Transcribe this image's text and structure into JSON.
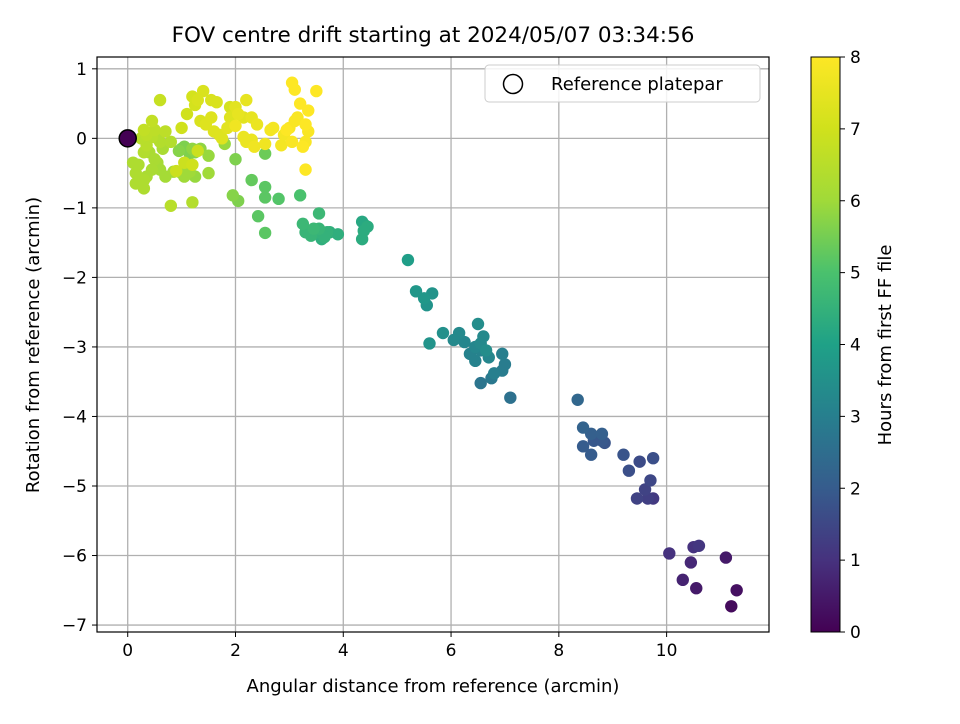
{
  "chart_data": {
    "type": "scatter",
    "title": "FOV centre drift starting at 2024/05/07 03:34:56",
    "xlabel": "Angular distance from reference (arcmin)",
    "ylabel": "Rotation from reference (arcmin)",
    "xlim": [
      -0.57,
      11.9
    ],
    "ylim": [
      -7.1,
      1.17
    ],
    "xticks": [
      0,
      2,
      4,
      6,
      8,
      10
    ],
    "xtick_labels": [
      "0",
      "2",
      "4",
      "6",
      "8",
      "10"
    ],
    "yticks": [
      1,
      0,
      -1,
      -2,
      -3,
      -4,
      -5,
      -6,
      -7
    ],
    "ytick_labels": [
      "1",
      "0",
      "−1",
      "−2",
      "−3",
      "−4",
      "−5",
      "−6",
      "−7"
    ],
    "grid": true,
    "legend": {
      "position": "upper right",
      "entries": [
        {
          "label": "Reference platepar",
          "marker": "open-circle"
        }
      ]
    },
    "reference_point": {
      "x": 0,
      "y": 0,
      "color_value": 0
    },
    "colorbar": {
      "label": "Hours from first FF file",
      "colormap": "viridis",
      "range": [
        0,
        8
      ],
      "ticks": [
        0,
        1,
        2,
        3,
        4,
        5,
        6,
        7,
        8
      ],
      "tick_labels": [
        "0",
        "1",
        "2",
        "3",
        "4",
        "5",
        "6",
        "7",
        "8"
      ]
    },
    "points": [
      [
        11.2,
        -6.73,
        0.2
      ],
      [
        11.3,
        -6.5,
        0.3
      ],
      [
        11.1,
        -6.03,
        0.5
      ],
      [
        10.55,
        -6.47,
        0.5
      ],
      [
        10.3,
        -6.35,
        0.7
      ],
      [
        10.45,
        -6.1,
        0.8
      ],
      [
        10.05,
        -5.97,
        1.0
      ],
      [
        10.5,
        -5.88,
        1.0
      ],
      [
        10.6,
        -5.86,
        1.1
      ],
      [
        9.75,
        -5.18,
        1.2
      ],
      [
        9.65,
        -5.18,
        1.3
      ],
      [
        9.45,
        -5.18,
        1.4
      ],
      [
        9.6,
        -5.05,
        1.4
      ],
      [
        9.7,
        -4.92,
        1.5
      ],
      [
        9.5,
        -4.65,
        1.6
      ],
      [
        9.75,
        -4.6,
        1.7
      ],
      [
        9.3,
        -4.78,
        1.7
      ],
      [
        9.2,
        -4.55,
        1.8
      ],
      [
        8.85,
        -4.38,
        1.8
      ],
      [
        8.8,
        -4.35,
        1.9
      ],
      [
        8.65,
        -4.35,
        1.9
      ],
      [
        8.6,
        -4.55,
        2.0
      ],
      [
        8.45,
        -4.43,
        2.0
      ],
      [
        8.6,
        -4.25,
        2.1
      ],
      [
        8.8,
        -4.25,
        2.1
      ],
      [
        8.45,
        -4.16,
        2.2
      ],
      [
        8.35,
        -3.76,
        2.3
      ],
      [
        7.1,
        -3.73,
        2.6
      ],
      [
        6.55,
        -3.52,
        2.7
      ],
      [
        6.75,
        -3.45,
        2.8
      ],
      [
        6.95,
        -3.34,
        2.9
      ],
      [
        7.0,
        -3.25,
        2.9
      ],
      [
        6.8,
        -3.38,
        3.0
      ],
      [
        6.95,
        -3.1,
        3.0
      ],
      [
        6.45,
        -3.2,
        3.1
      ],
      [
        6.35,
        -3.1,
        3.1
      ],
      [
        6.55,
        -3.05,
        3.1
      ],
      [
        6.7,
        -3.15,
        3.2
      ],
      [
        6.45,
        -3.0,
        3.2
      ],
      [
        6.25,
        -2.93,
        3.2
      ],
      [
        6.15,
        -2.8,
        3.3
      ],
      [
        6.05,
        -2.9,
        3.3
      ],
      [
        6.55,
        -2.95,
        3.3
      ],
      [
        6.6,
        -2.85,
        3.3
      ],
      [
        6.65,
        -3.05,
        3.4
      ],
      [
        6.5,
        -2.67,
        3.4
      ],
      [
        5.85,
        -2.8,
        3.5
      ],
      [
        5.6,
        -2.95,
        3.6
      ],
      [
        5.55,
        -2.4,
        3.6
      ],
      [
        5.65,
        -2.23,
        3.6
      ],
      [
        5.5,
        -2.3,
        3.7
      ],
      [
        5.35,
        -2.2,
        3.7
      ],
      [
        5.2,
        -1.75,
        3.9
      ],
      [
        4.4,
        -1.25,
        4.2
      ],
      [
        4.35,
        -1.2,
        4.2
      ],
      [
        4.45,
        -1.27,
        4.3
      ],
      [
        4.35,
        -1.45,
        4.3
      ],
      [
        4.38,
        -1.33,
        4.3
      ],
      [
        3.9,
        -1.38,
        4.4
      ],
      [
        3.75,
        -1.35,
        4.4
      ],
      [
        3.6,
        -1.45,
        4.4
      ],
      [
        3.5,
        -1.35,
        4.5
      ],
      [
        3.7,
        -1.35,
        4.5
      ],
      [
        3.65,
        -1.42,
        4.5
      ],
      [
        3.55,
        -1.3,
        4.6
      ],
      [
        3.4,
        -1.4,
        4.6
      ],
      [
        3.3,
        -1.35,
        4.6
      ],
      [
        3.45,
        -1.3,
        4.7
      ],
      [
        3.25,
        -1.23,
        4.7
      ],
      [
        3.55,
        -1.08,
        4.7
      ],
      [
        3.2,
        -0.82,
        5.0
      ],
      [
        2.8,
        -0.87,
        5.1
      ],
      [
        2.55,
        -0.85,
        5.2
      ],
      [
        2.55,
        -0.7,
        5.2
      ],
      [
        2.55,
        -1.36,
        5.2
      ],
      [
        2.42,
        -1.12,
        5.2
      ],
      [
        2.3,
        -0.6,
        5.3
      ],
      [
        2.55,
        -0.22,
        5.4
      ],
      [
        2.0,
        -0.3,
        5.6
      ],
      [
        2.05,
        -0.9,
        5.6
      ],
      [
        1.95,
        -0.82,
        5.7
      ],
      [
        1.0,
        -0.15,
        5.5
      ],
      [
        1.15,
        -0.22,
        5.6
      ],
      [
        1.05,
        -0.12,
        5.6
      ],
      [
        0.95,
        -0.18,
        5.7
      ],
      [
        1.25,
        -0.2,
        5.7
      ],
      [
        1.2,
        -0.15,
        5.8
      ],
      [
        1.35,
        -0.15,
        5.8
      ],
      [
        1.5,
        -0.25,
        5.9
      ],
      [
        1.8,
        -0.08,
        5.9
      ],
      [
        1.25,
        -0.55,
        5.9
      ],
      [
        1.05,
        -0.55,
        6.0
      ],
      [
        1.0,
        -0.5,
        6.0
      ],
      [
        1.15,
        -0.48,
        6.0
      ],
      [
        1.5,
        -0.5,
        6.0
      ],
      [
        0.85,
        -0.48,
        6.1
      ],
      [
        0.6,
        -0.45,
        6.1
      ],
      [
        0.7,
        -0.55,
        6.1
      ],
      [
        0.55,
        -0.35,
        6.1
      ],
      [
        0.5,
        -0.3,
        6.2
      ],
      [
        0.65,
        -0.15,
        6.2
      ],
      [
        0.4,
        -0.2,
        6.2
      ],
      [
        0.45,
        -0.45,
        6.2
      ],
      [
        0.35,
        -0.55,
        6.2
      ],
      [
        0.3,
        -0.6,
        6.3
      ],
      [
        0.15,
        -0.5,
        6.3
      ],
      [
        0.2,
        -0.38,
        6.3
      ],
      [
        0.1,
        -0.35,
        6.3
      ],
      [
        0.15,
        -0.65,
        6.3
      ],
      [
        0.3,
        -0.72,
        6.3
      ],
      [
        0.6,
        -0.05,
        6.4
      ],
      [
        0.55,
        0.0,
        6.4
      ],
      [
        0.8,
        -0.05,
        6.4
      ],
      [
        0.3,
        -0.2,
        6.4
      ],
      [
        0.35,
        -0.1,
        6.5
      ],
      [
        0.25,
        0.0,
        6.5
      ],
      [
        0.45,
        0.02,
        6.5
      ],
      [
        0.35,
        0.05,
        6.6
      ],
      [
        0.7,
        0.1,
        6.6
      ],
      [
        0.5,
        0.12,
        6.6
      ],
      [
        0.3,
        0.12,
        6.7
      ],
      [
        0.45,
        0.25,
        6.7
      ],
      [
        0.6,
        0.55,
        6.8
      ],
      [
        0.8,
        -0.97,
        6.5
      ],
      [
        1.2,
        -0.92,
        6.4
      ],
      [
        0.9,
        -0.47,
        6.9
      ],
      [
        1.05,
        -0.35,
        6.9
      ],
      [
        1.2,
        -0.38,
        7.0
      ],
      [
        1.3,
        -0.18,
        6.9
      ],
      [
        1.0,
        0.15,
        7.0
      ],
      [
        1.1,
        0.35,
        7.0
      ],
      [
        1.25,
        0.48,
        7.1
      ],
      [
        1.2,
        0.6,
        7.1
      ],
      [
        1.4,
        0.68,
        7.2
      ],
      [
        1.55,
        0.55,
        7.2
      ],
      [
        1.65,
        0.52,
        7.2
      ],
      [
        1.35,
        0.25,
        7.2
      ],
      [
        1.45,
        0.2,
        7.3
      ],
      [
        1.55,
        0.3,
        7.3
      ],
      [
        1.6,
        0.1,
        7.3
      ],
      [
        1.7,
        0.05,
        7.3
      ],
      [
        1.75,
        0.0,
        7.3
      ],
      [
        1.85,
        0.15,
        7.4
      ],
      [
        1.9,
        0.3,
        7.3
      ],
      [
        2.0,
        0.45,
        7.4
      ],
      [
        2.05,
        0.35,
        7.5
      ],
      [
        2.15,
        0.3,
        7.4
      ],
      [
        2.2,
        0.55,
        7.5
      ],
      [
        2.3,
        0.3,
        7.5
      ],
      [
        2.4,
        0.2,
        7.6
      ],
      [
        2.3,
        -0.02,
        7.6
      ],
      [
        2.2,
        -0.05,
        7.6
      ],
      [
        2.15,
        0.02,
        7.6
      ],
      [
        2.0,
        0.18,
        7.7
      ],
      [
        2.35,
        -0.12,
        7.7
      ],
      [
        2.55,
        -0.08,
        7.7
      ],
      [
        2.65,
        0.12,
        7.8
      ],
      [
        2.7,
        0.15,
        7.8
      ],
      [
        2.85,
        -0.1,
        7.8
      ],
      [
        2.9,
        0.05,
        7.8
      ],
      [
        3.0,
        0.15,
        7.9
      ],
      [
        3.1,
        0.25,
        7.9
      ],
      [
        3.15,
        0.3,
        7.9
      ],
      [
        3.05,
        -0.05,
        7.9
      ],
      [
        3.3,
        -0.05,
        7.9
      ],
      [
        3.3,
        0.2,
        8.0
      ],
      [
        3.35,
        0.4,
        8.0
      ],
      [
        3.2,
        0.5,
        8.0
      ],
      [
        3.5,
        0.68,
        8.0
      ],
      [
        3.05,
        0.8,
        8.0
      ],
      [
        3.1,
        0.7,
        8.0
      ],
      [
        3.3,
        -0.45,
        8.0
      ],
      [
        3.25,
        -0.12,
        8.0
      ],
      [
        2.95,
        0.12,
        8.0
      ],
      [
        3.35,
        0.1,
        7.9
      ],
      [
        1.3,
        0.55,
        7.2
      ],
      [
        1.9,
        0.45,
        7.1
      ]
    ]
  }
}
